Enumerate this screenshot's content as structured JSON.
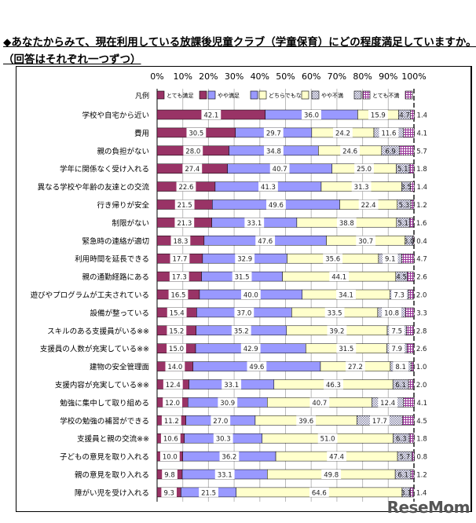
{
  "title_line1": "◆あなたからみて、現在利用している放課後児童クラブ（学童保育）にどの程度満足していますか。",
  "title_line2": "（回答はそれぞれ一つずつ）",
  "logo": "ReseMom",
  "chart_data": {
    "type": "bar",
    "orientation": "horizontal-stacked-100",
    "xlim": [
      0,
      100
    ],
    "ticks": [
      "0%",
      "10%",
      "20%",
      "30%",
      "40%",
      "50%",
      "60%",
      "70%",
      "80%",
      "90%",
      "100%"
    ],
    "legend_label": "凡例",
    "series": [
      {
        "name": "とても満足",
        "color": "#993366"
      },
      {
        "name": "やや満足",
        "color": "#9999ff"
      },
      {
        "name": "どちらでもない",
        "color": "#ffffcc"
      },
      {
        "name": "やや不満",
        "color": "#ccccdd"
      },
      {
        "name": "とても不満",
        "color": "#aa66aa"
      }
    ],
    "categories": [
      "学校や自宅から近い",
      "費用",
      "親の負担がない",
      "学年に関係なく受け入れる",
      "異なる学校や年齢の友達との交流",
      "行き帰りが安全",
      "制限がない",
      "緊急時の連絡が適切",
      "利用時間を延長できる",
      "親の通勤経路にある",
      "遊びやプログラムが工夫されている",
      "設備が整っている",
      "スキルのある支援員がいる※※",
      "支援員の人数が充実している※※",
      "建物の安全管理面",
      "支援内容が充実している※※",
      "勉強に集中して取り組める",
      "学校の勉強の補習ができる",
      "支援員と親の交流※※",
      "子どもの意見を取り入れる",
      "親の意見を取り入れる",
      "障がい児を受け入れる"
    ],
    "values": [
      [
        42.1,
        36.0,
        15.9,
        4.7,
        1.4
      ],
      [
        30.5,
        29.7,
        24.2,
        11.6,
        4.1
      ],
      [
        28.0,
        34.8,
        24.6,
        6.9,
        5.7
      ],
      [
        27.4,
        40.7,
        25.0,
        5.1,
        1.8
      ],
      [
        22.6,
        41.3,
        31.3,
        3.5,
        1.4
      ],
      [
        21.5,
        49.6,
        22.4,
        5.3,
        1.2
      ],
      [
        21.3,
        33.1,
        38.8,
        5.1,
        1.6
      ],
      [
        18.3,
        47.6,
        30.7,
        3.0,
        0.4
      ],
      [
        17.7,
        32.9,
        35.6,
        9.1,
        4.7
      ],
      [
        17.3,
        31.5,
        44.1,
        4.5,
        2.6
      ],
      [
        16.5,
        40.0,
        34.1,
        7.3,
        2.0
      ],
      [
        15.4,
        37.0,
        33.5,
        10.8,
        3.3
      ],
      [
        15.2,
        35.2,
        39.2,
        7.5,
        2.8
      ],
      [
        15.0,
        42.9,
        31.5,
        7.9,
        2.6
      ],
      [
        14.0,
        49.6,
        27.2,
        8.1,
        1.0
      ],
      [
        12.4,
        33.1,
        46.3,
        6.1,
        2.0
      ],
      [
        12.0,
        30.9,
        40.7,
        12.4,
        4.1
      ],
      [
        11.2,
        27.0,
        39.6,
        17.7,
        4.5
      ],
      [
        10.6,
        30.3,
        51.0,
        6.3,
        1.8
      ],
      [
        10.0,
        36.2,
        47.4,
        5.7,
        0.8
      ],
      [
        9.8,
        33.1,
        49.8,
        6.1,
        1.2
      ],
      [
        9.3,
        21.5,
        64.6,
        3.1,
        1.4
      ]
    ]
  }
}
